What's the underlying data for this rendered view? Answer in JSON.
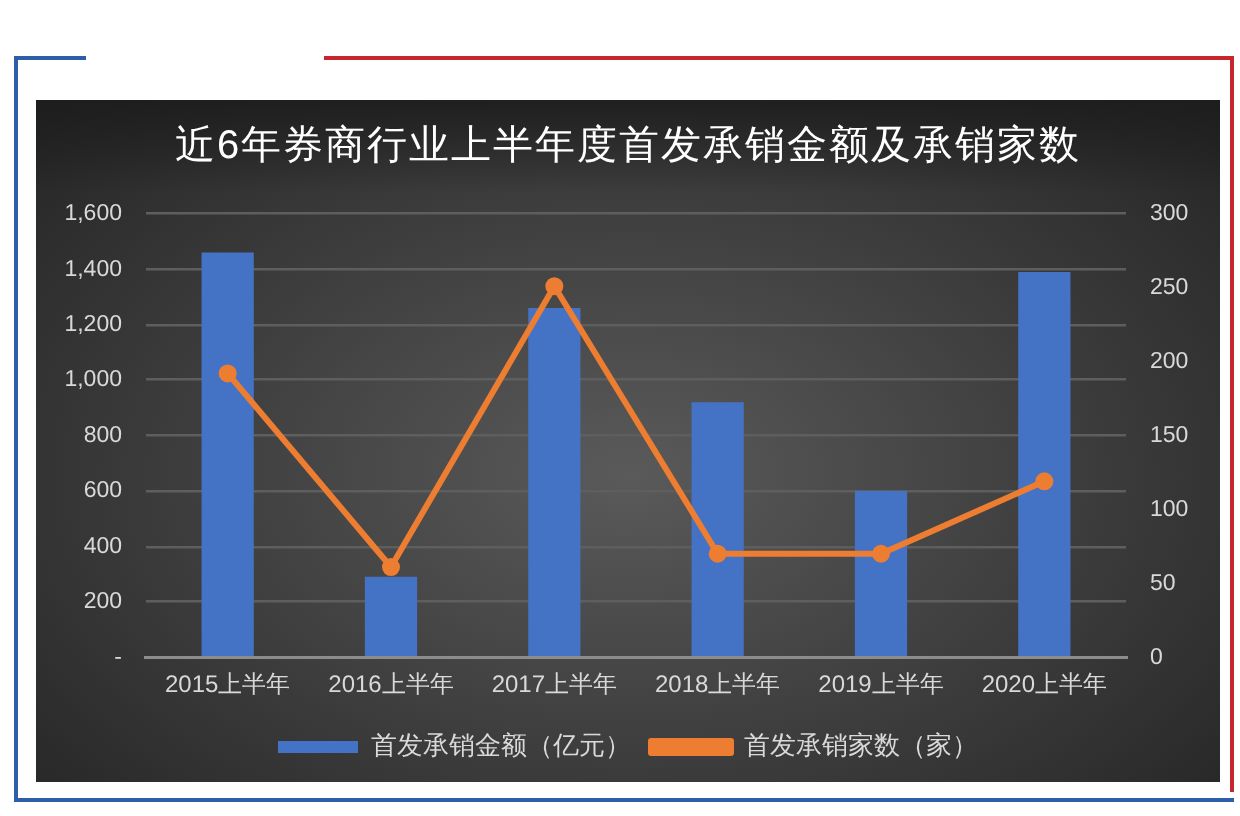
{
  "chart_data": {
    "type": "bar",
    "title": "近6年券商行业上半年度首发承销金额及承销家数",
    "categories": [
      "2015上半年",
      "2016上半年",
      "2017上半年",
      "2018上半年",
      "2019上半年",
      "2020上半年"
    ],
    "series": [
      {
        "name": "首发承销金额（亿元）",
        "color": "#4472c4",
        "values": [
          1460,
          290,
          1260,
          920,
          600,
          1390
        ]
      },
      {
        "name": "首发承销家数（家）",
        "type": "line",
        "axis": "y2",
        "color": "#ed7d31",
        "values": [
          192,
          61,
          251,
          70,
          70,
          119
        ]
      }
    ],
    "ylim": [
      0,
      1600
    ],
    "yticks": [
      {
        "value": 0,
        "label": "-"
      },
      200,
      400,
      600,
      800,
      {
        "value": 1000,
        "label": "1,000"
      },
      {
        "value": 1200,
        "label": "1,200"
      },
      {
        "value": 1400,
        "label": "1,400"
      },
      {
        "value": 1600,
        "label": "1,600"
      }
    ],
    "y2lim": [
      0,
      300
    ],
    "y2ticks": [
      0,
      50,
      100,
      150,
      200,
      250,
      300
    ],
    "grid": "y",
    "legend": "bottom",
    "marker": "circle",
    "line_style": "solid"
  }
}
